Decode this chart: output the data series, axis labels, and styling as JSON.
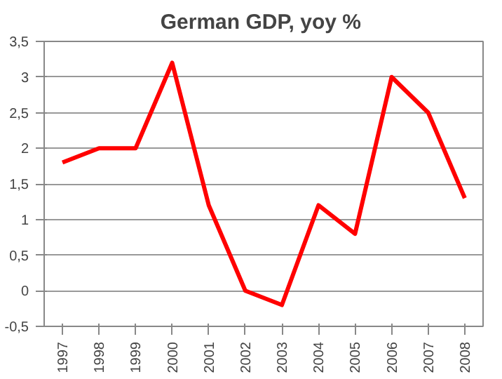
{
  "chart_data": {
    "type": "line",
    "title": "German GDP,  yoy %",
    "categories": [
      "1997",
      "1998",
      "1999",
      "2000",
      "2001",
      "2002",
      "2003",
      "2004",
      "2005",
      "2006",
      "2007",
      "2008"
    ],
    "series": [
      {
        "color": "#ff0000",
        "values": [
          1.8,
          2.0,
          2.0,
          3.2,
          1.2,
          0.0,
          -0.2,
          1.2,
          0.8,
          3.0,
          2.5,
          1.3
        ]
      }
    ],
    "ylim": [
      -0.5,
      3.5
    ],
    "yticks": [
      {
        "value": -0.5,
        "label": "-0,5"
      },
      0,
      {
        "value": 0.5,
        "label": "0,5"
      },
      1,
      {
        "value": 1.5,
        "label": "1,5"
      },
      2,
      {
        "value": 2.5,
        "label": "2,5"
      },
      3,
      {
        "value": 3.5,
        "label": "3,5"
      }
    ],
    "grid": "y",
    "marker": "none",
    "line_style": "solid"
  }
}
